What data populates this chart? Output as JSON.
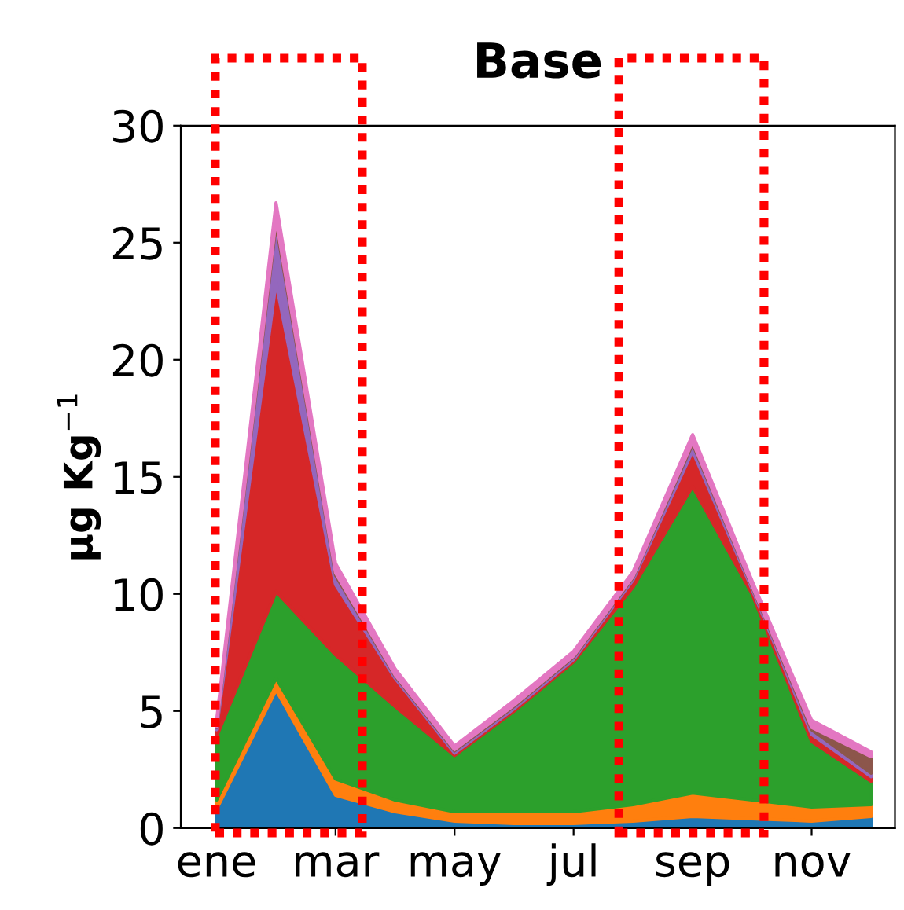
{
  "chart_data": {
    "type": "area",
    "stacked": true,
    "title": "Base",
    "ylabel": "μg Kg$^{−1}$",
    "categories": [
      "ene",
      null,
      "mar",
      null,
      "may",
      null,
      "jul",
      null,
      "sep",
      null,
      "nov",
      null
    ],
    "ylim": [
      0,
      30
    ],
    "yticks": [
      0,
      5,
      10,
      15,
      20,
      25,
      30
    ],
    "grid": false,
    "series": [
      {
        "color": "#1f77b4",
        "values": [
          0.8,
          5.9,
          1.4,
          0.7,
          0.3,
          0.2,
          0.2,
          0.3,
          0.5,
          0.4,
          0.3,
          0.5
        ]
      },
      {
        "color": "#ff7f0e",
        "values": [
          0.4,
          0.5,
          0.7,
          0.5,
          0.4,
          0.5,
          0.5,
          0.7,
          1.0,
          0.8,
          0.6,
          0.5
        ]
      },
      {
        "color": "#2ca02c",
        "values": [
          2.7,
          3.7,
          5.3,
          4.0,
          2.4,
          4.3,
          6.4,
          9.3,
          13.1,
          8.8,
          2.8,
          1.0
        ]
      },
      {
        "color": "#d62728",
        "values": [
          0.3,
          13.2,
          3.0,
          1.2,
          0.1,
          0.1,
          0.1,
          0.3,
          1.5,
          0.2,
          0.3,
          0.2
        ]
      },
      {
        "color": "#9467bd",
        "values": [
          0.1,
          2.5,
          0.4,
          0.1,
          0.1,
          0.1,
          0.1,
          0.1,
          0.3,
          0.1,
          0.2,
          0.15
        ]
      },
      {
        "color": "#8c564b",
        "values": [
          0.05,
          0.2,
          0.1,
          0.05,
          0.05,
          0.05,
          0.05,
          0.05,
          0.1,
          0.05,
          0.1,
          0.7
        ]
      },
      {
        "color": "#e377c2",
        "values": [
          0.2,
          0.7,
          0.4,
          0.25,
          0.15,
          0.2,
          0.2,
          0.2,
          0.3,
          0.2,
          0.3,
          0.2
        ]
      }
    ]
  }
}
